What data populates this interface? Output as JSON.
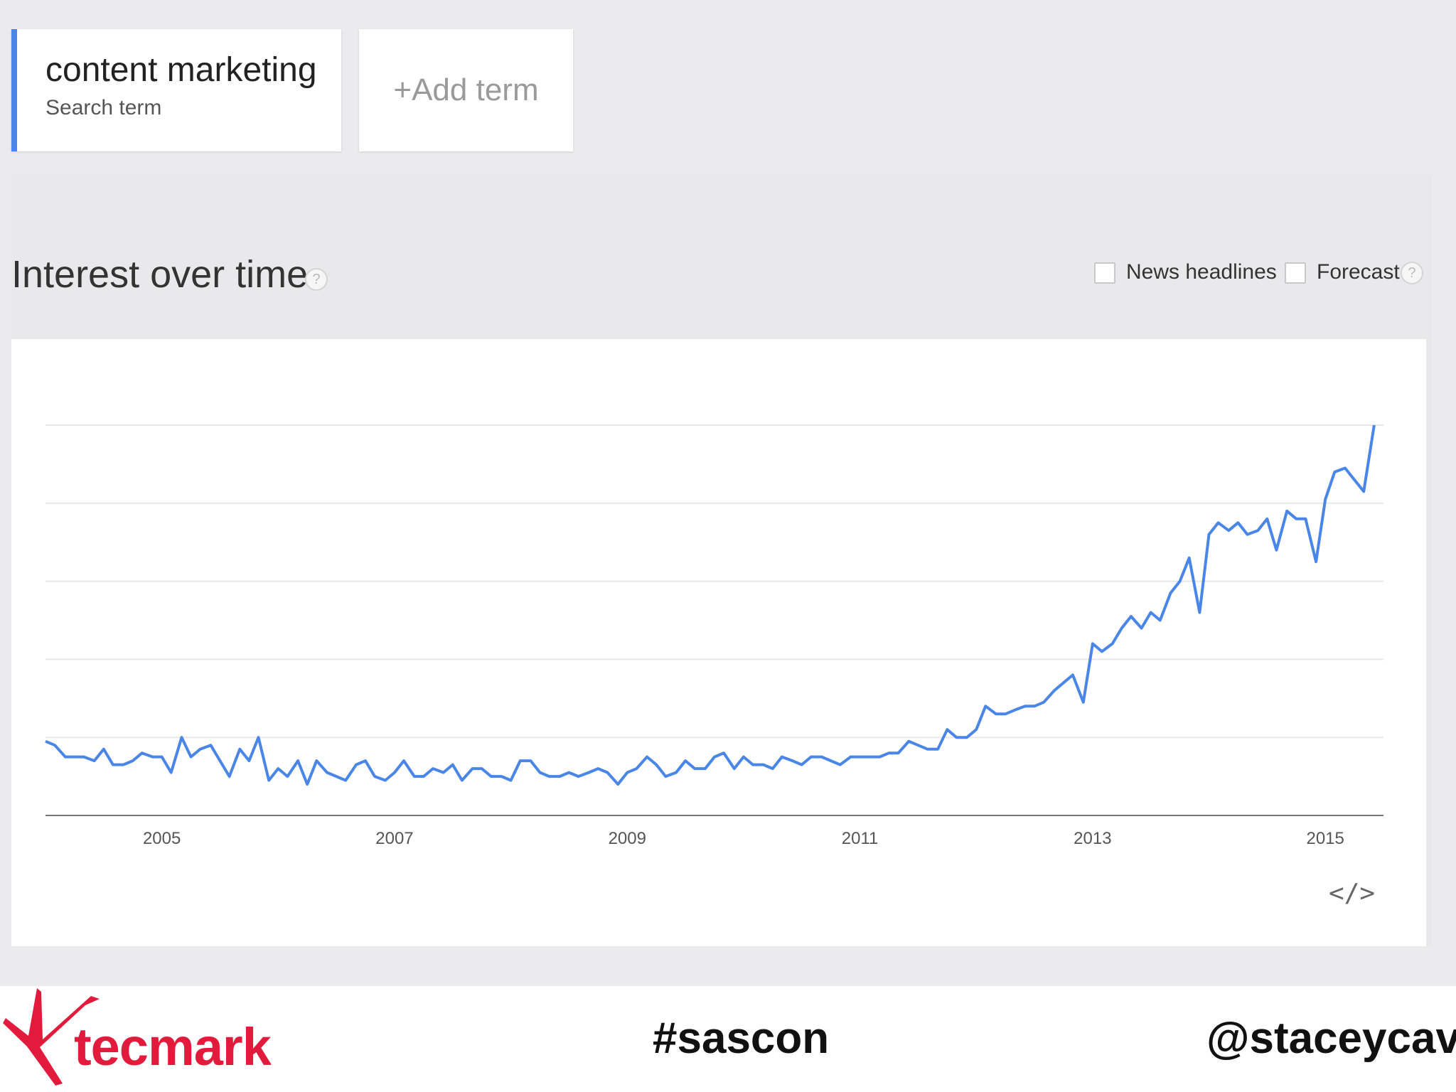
{
  "search_term": {
    "title": "content marketing",
    "subtitle": "Search term"
  },
  "add_term": {
    "label": "+Add term"
  },
  "section": {
    "title": "Interest over time",
    "help": "?",
    "options": [
      {
        "label": "News headlines",
        "checked": false
      },
      {
        "label": "Forecast",
        "checked": false
      }
    ],
    "options_help": "?"
  },
  "chart_data": {
    "type": "line",
    "x_axis": "time",
    "x_ticks": [
      "2005",
      "2007",
      "2009",
      "2011",
      "2013",
      "2015"
    ],
    "x_range": [
      2004.0,
      2015.5
    ],
    "y_range": [
      0,
      100
    ],
    "grid": true,
    "series": [
      {
        "color": "#4a86e8",
        "points": [
          [
            2004.0,
            19
          ],
          [
            2004.08,
            18
          ],
          [
            2004.17,
            15
          ],
          [
            2004.25,
            15
          ],
          [
            2004.33,
            15
          ],
          [
            2004.42,
            14
          ],
          [
            2004.5,
            17
          ],
          [
            2004.58,
            13
          ],
          [
            2004.67,
            13
          ],
          [
            2004.75,
            14
          ],
          [
            2004.83,
            16
          ],
          [
            2004.92,
            15
          ],
          [
            2005.0,
            15
          ],
          [
            2005.08,
            11
          ],
          [
            2005.17,
            20
          ],
          [
            2005.25,
            15
          ],
          [
            2005.33,
            17
          ],
          [
            2005.42,
            18
          ],
          [
            2005.5,
            14
          ],
          [
            2005.58,
            10
          ],
          [
            2005.67,
            17
          ],
          [
            2005.75,
            14
          ],
          [
            2005.83,
            20
          ],
          [
            2005.92,
            9
          ],
          [
            2006.0,
            12
          ],
          [
            2006.08,
            10
          ],
          [
            2006.17,
            14
          ],
          [
            2006.25,
            8
          ],
          [
            2006.33,
            14
          ],
          [
            2006.42,
            11
          ],
          [
            2006.5,
            10
          ],
          [
            2006.58,
            9
          ],
          [
            2006.67,
            13
          ],
          [
            2006.75,
            14
          ],
          [
            2006.83,
            10
          ],
          [
            2006.92,
            9
          ],
          [
            2007.0,
            11
          ],
          [
            2007.08,
            14
          ],
          [
            2007.17,
            10
          ],
          [
            2007.25,
            10
          ],
          [
            2007.33,
            12
          ],
          [
            2007.42,
            11
          ],
          [
            2007.5,
            13
          ],
          [
            2007.58,
            9
          ],
          [
            2007.67,
            12
          ],
          [
            2007.75,
            12
          ],
          [
            2007.83,
            10
          ],
          [
            2007.92,
            10
          ],
          [
            2008.0,
            9
          ],
          [
            2008.08,
            14
          ],
          [
            2008.17,
            14
          ],
          [
            2008.25,
            11
          ],
          [
            2008.33,
            10
          ],
          [
            2008.42,
            10
          ],
          [
            2008.5,
            11
          ],
          [
            2008.58,
            10
          ],
          [
            2008.67,
            11
          ],
          [
            2008.75,
            12
          ],
          [
            2008.83,
            11
          ],
          [
            2008.92,
            8
          ],
          [
            2009.0,
            11
          ],
          [
            2009.08,
            12
          ],
          [
            2009.17,
            15
          ],
          [
            2009.25,
            13
          ],
          [
            2009.33,
            10
          ],
          [
            2009.42,
            11
          ],
          [
            2009.5,
            14
          ],
          [
            2009.58,
            12
          ],
          [
            2009.67,
            12
          ],
          [
            2009.75,
            15
          ],
          [
            2009.83,
            16
          ],
          [
            2009.92,
            12
          ],
          [
            2010.0,
            15
          ],
          [
            2010.08,
            13
          ],
          [
            2010.17,
            13
          ],
          [
            2010.25,
            12
          ],
          [
            2010.33,
            15
          ],
          [
            2010.42,
            14
          ],
          [
            2010.5,
            13
          ],
          [
            2010.58,
            15
          ],
          [
            2010.67,
            15
          ],
          [
            2010.75,
            14
          ],
          [
            2010.83,
            13
          ],
          [
            2010.92,
            15
          ],
          [
            2011.0,
            15
          ],
          [
            2011.08,
            15
          ],
          [
            2011.17,
            15
          ],
          [
            2011.25,
            16
          ],
          [
            2011.33,
            16
          ],
          [
            2011.42,
            19
          ],
          [
            2011.5,
            18
          ],
          [
            2011.58,
            17
          ],
          [
            2011.67,
            17
          ],
          [
            2011.75,
            22
          ],
          [
            2011.83,
            20
          ],
          [
            2011.92,
            20
          ],
          [
            2012.0,
            22
          ],
          [
            2012.08,
            28
          ],
          [
            2012.17,
            26
          ],
          [
            2012.25,
            26
          ],
          [
            2012.33,
            27
          ],
          [
            2012.42,
            28
          ],
          [
            2012.5,
            28
          ],
          [
            2012.58,
            29
          ],
          [
            2012.67,
            32
          ],
          [
            2012.75,
            34
          ],
          [
            2012.83,
            36
          ],
          [
            2012.92,
            29
          ],
          [
            2013.0,
            44
          ],
          [
            2013.08,
            42
          ],
          [
            2013.17,
            44
          ],
          [
            2013.25,
            48
          ],
          [
            2013.33,
            51
          ],
          [
            2013.42,
            48
          ],
          [
            2013.5,
            52
          ],
          [
            2013.58,
            50
          ],
          [
            2013.67,
            57
          ],
          [
            2013.75,
            60
          ],
          [
            2013.83,
            66
          ],
          [
            2013.92,
            52
          ],
          [
            2014.0,
            72
          ],
          [
            2014.08,
            75
          ],
          [
            2014.17,
            73
          ],
          [
            2014.25,
            75
          ],
          [
            2014.33,
            72
          ],
          [
            2014.42,
            73
          ],
          [
            2014.5,
            76
          ],
          [
            2014.58,
            68
          ],
          [
            2014.67,
            78
          ],
          [
            2014.75,
            76
          ],
          [
            2014.83,
            76
          ],
          [
            2014.92,
            65
          ],
          [
            2015.0,
            81
          ],
          [
            2015.08,
            88
          ],
          [
            2015.17,
            89
          ],
          [
            2015.25,
            86
          ],
          [
            2015.33,
            83
          ],
          [
            2015.42,
            100
          ]
        ]
      }
    ]
  },
  "embed_icon": "code-embed-icon",
  "embed_label": "</>",
  "footer": {
    "logo_text": "tecmark",
    "hashtag": "#sascon",
    "handle": "@staceycav"
  }
}
